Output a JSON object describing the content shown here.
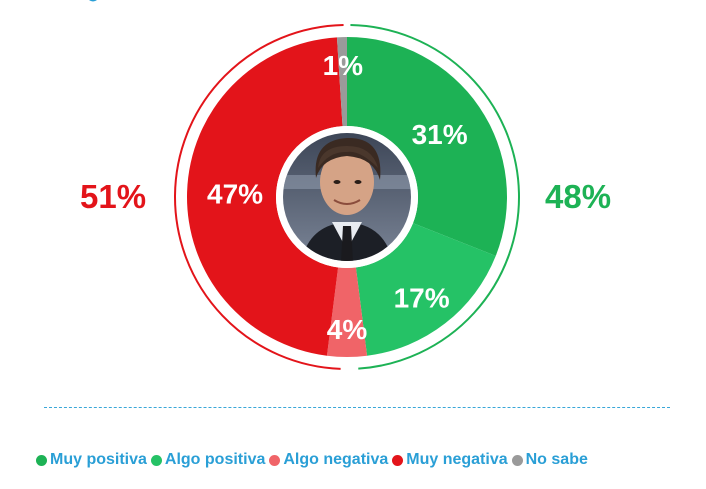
{
  "chart_data": {
    "type": "pie",
    "title": "",
    "slices": [
      {
        "label": "Muy positiva",
        "value": 31,
        "display": "31%",
        "color": "#1db255"
      },
      {
        "label": "Algo positiva",
        "value": 17,
        "display": "17%",
        "color": "#25c266"
      },
      {
        "label": "Algo negativa",
        "value": 4,
        "display": "4%",
        "color": "#f06468"
      },
      {
        "label": "Muy negativa",
        "value": 47,
        "display": "47%",
        "color": "#e3141a"
      },
      {
        "label": "No sabe",
        "value": 1,
        "display": "1%",
        "color": "#9a9a9a"
      }
    ],
    "totals": {
      "positive": {
        "value": 48,
        "display": "48%",
        "color": "#1db255"
      },
      "negative": {
        "value": 51,
        "display": "51%",
        "color": "#e3141a"
      }
    },
    "legend_position": "bottom",
    "center_image": "portrait-photo"
  },
  "legend": {
    "items": [
      {
        "label": "Muy positiva",
        "color": "#1db255"
      },
      {
        "label": "Algo positiva",
        "color": "#25c266"
      },
      {
        "label": "Algo negativa",
        "color": "#f06468"
      },
      {
        "label": "Muy negativa",
        "color": "#e3141a"
      },
      {
        "label": "No sabe",
        "color": "#9a9a9a"
      }
    ]
  },
  "colors": {
    "legend_text": "#2a9fd6",
    "divider": "#3aa7d8"
  }
}
